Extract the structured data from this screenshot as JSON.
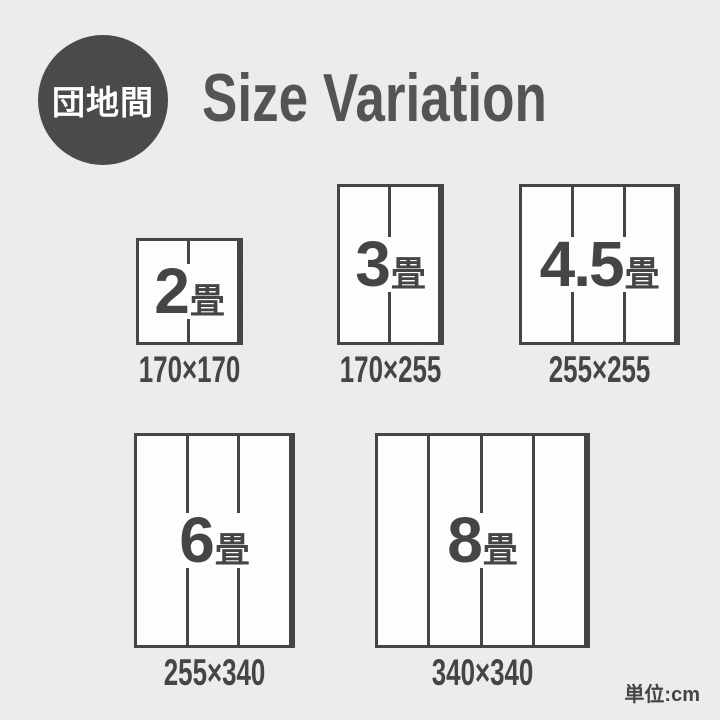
{
  "header": {
    "badge": "団地間",
    "title": "Size Variation"
  },
  "sizes": [
    {
      "id": "2jo",
      "number": "2",
      "unit": "畳",
      "dimensions": "170×170",
      "width_cm": 170,
      "height_cm": 170,
      "panels": 2
    },
    {
      "id": "3jo",
      "number": "3",
      "unit": "畳",
      "dimensions": "170×255",
      "width_cm": 170,
      "height_cm": 255,
      "panels": 2
    },
    {
      "id": "45jo",
      "number": "4.5",
      "unit": "畳",
      "dimensions": "255×255",
      "width_cm": 255,
      "height_cm": 255,
      "panels": 3
    },
    {
      "id": "6jo",
      "number": "6",
      "unit": "畳",
      "dimensions": "255×340",
      "width_cm": 255,
      "height_cm": 340,
      "panels": 3
    },
    {
      "id": "8jo",
      "number": "8",
      "unit": "畳",
      "dimensions": "340×340",
      "width_cm": 340,
      "height_cm": 340,
      "panels": 4
    }
  ],
  "footer": {
    "unit_label": "単位:cm"
  },
  "theme": {
    "ink": "#454545",
    "title_color": "#545454",
    "badge_bg": "#4a4a4a",
    "box_fill": "#fdfdfd",
    "page_bg": "#f0efed"
  }
}
